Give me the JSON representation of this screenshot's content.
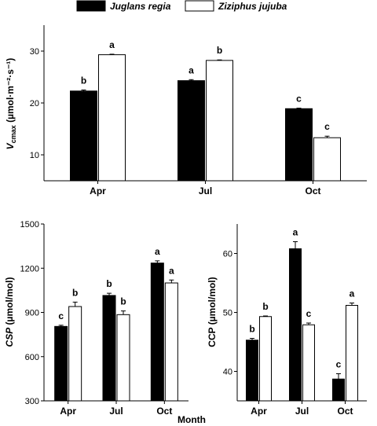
{
  "legend": [
    {
      "name": "Juglans regia",
      "color": "#000000"
    },
    {
      "name": "Ziziphus jujuba",
      "color": "#ffffff"
    }
  ],
  "shared_xlabel": "Month",
  "chart_data": [
    {
      "type": "bar",
      "categories": [
        "Apr",
        "Jul",
        "Oct"
      ],
      "ylabel_parts": {
        "italic": "V",
        "sub": "cmax",
        "rest": " (µmol·m⁻²·s⁻¹)"
      },
      "ylim": [
        5,
        35
      ],
      "yticks": [
        "10",
        "20",
        "30"
      ],
      "series": [
        {
          "name": "Juglans regia",
          "values": [
            22.3,
            24.3,
            18.9
          ],
          "errors": [
            0.2,
            0.2,
            0.1
          ],
          "letters": [
            "b",
            "a",
            "c"
          ]
        },
        {
          "name": "Ziziphus jujuba",
          "values": [
            29.3,
            28.2,
            13.3
          ],
          "errors": [
            0.1,
            0.1,
            0.3
          ],
          "letters": [
            "a",
            "b",
            "c"
          ]
        }
      ]
    },
    {
      "type": "bar",
      "categories": [
        "Apr",
        "Jul",
        "Oct"
      ],
      "ylabel_parts": {
        "italic": "CSP",
        "sub": "",
        "rest": " (µmol/mol)"
      },
      "ylim": [
        300,
        1500
      ],
      "yticks": [
        "300",
        "600",
        "900",
        "1200",
        "1500"
      ],
      "series": [
        {
          "name": "Juglans regia",
          "values": [
            805,
            1015,
            1235
          ],
          "errors": [
            8,
            15,
            15
          ],
          "letters": [
            "c",
            "b",
            "a"
          ]
        },
        {
          "name": "Ziziphus jujuba",
          "values": [
            940,
            885,
            1100
          ],
          "errors": [
            30,
            25,
            20
          ],
          "letters": [
            "b",
            "b",
            "a"
          ]
        }
      ]
    },
    {
      "type": "bar",
      "categories": [
        "Apr",
        "Jul",
        "Oct"
      ],
      "ylabel_parts": {
        "italic": "",
        "sub": "",
        "rest": "CCP (µmol/mol)"
      },
      "ylim": [
        35,
        65
      ],
      "yticks": [
        "40",
        "50",
        "60"
      ],
      "series": [
        {
          "name": "Juglans regia",
          "values": [
            45.3,
            60.8,
            38.7
          ],
          "errors": [
            0.3,
            1.2,
            0.9
          ],
          "letters": [
            "b",
            "a",
            "c"
          ]
        },
        {
          "name": "Ziziphus jujuba",
          "values": [
            49.3,
            47.9,
            51.2
          ],
          "errors": [
            0.1,
            0.3,
            0.4
          ],
          "letters": [
            "b",
            "c",
            "a"
          ]
        }
      ]
    }
  ]
}
